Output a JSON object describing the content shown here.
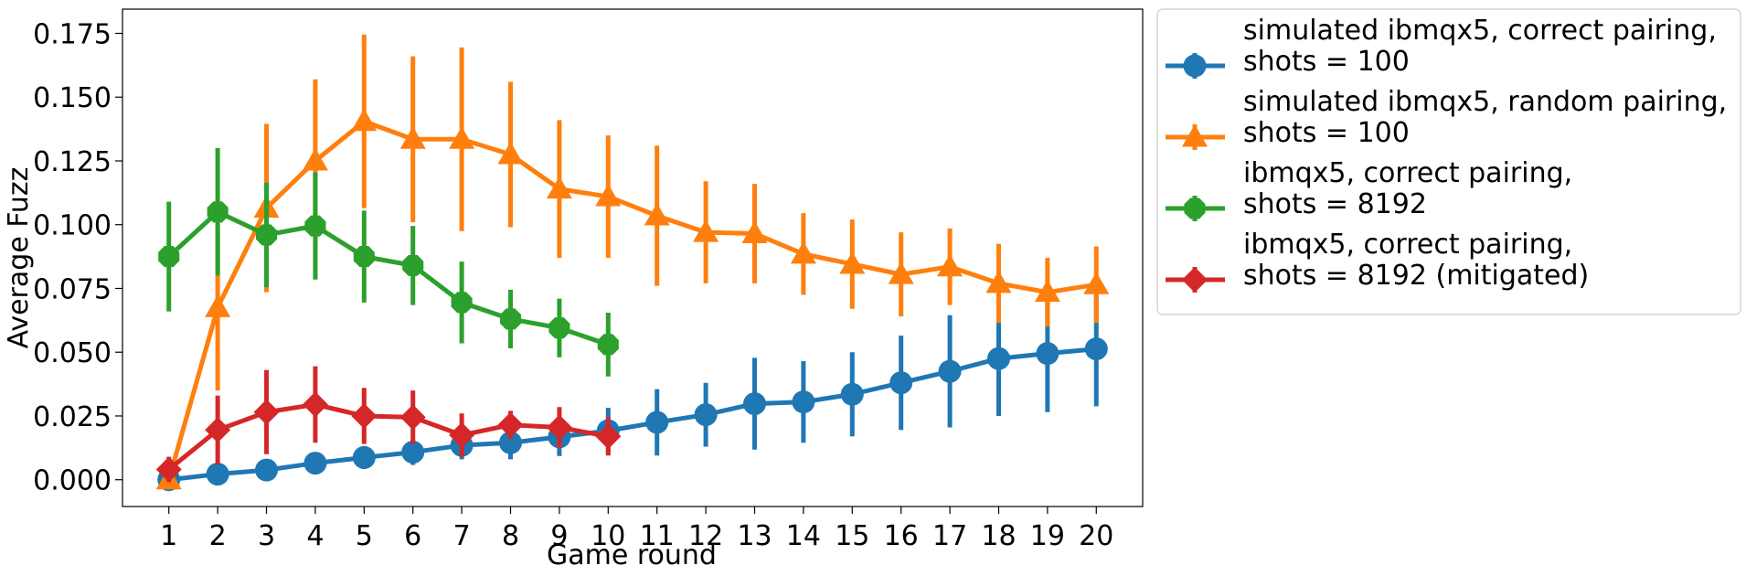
{
  "chart_data": {
    "type": "line",
    "title": "",
    "xlabel": "Game round",
    "ylabel": "Average Fuzz",
    "xlim": [
      0.05,
      20.95
    ],
    "ylim": [
      -0.0105,
      0.1845
    ],
    "x_ticks": [
      1,
      2,
      3,
      4,
      5,
      6,
      7,
      8,
      9,
      10,
      11,
      12,
      13,
      14,
      15,
      16,
      17,
      18,
      19,
      20
    ],
    "y_ticks": [
      0.0,
      0.025,
      0.05,
      0.075,
      0.1,
      0.125,
      0.15,
      0.175
    ],
    "y_tick_labels": [
      "0.000",
      "0.025",
      "0.050",
      "0.075",
      "0.100",
      "0.125",
      "0.150",
      "0.175"
    ],
    "grid": false,
    "legend_position": "outside-right-top",
    "series": [
      {
        "name_lines": [
          "simulated ibmqx5, correct pairing,",
          "shots = 100"
        ],
        "color": "#1f77b4",
        "marker": "circle",
        "x": [
          1,
          2,
          3,
          4,
          5,
          6,
          7,
          8,
          9,
          10,
          11,
          12,
          13,
          14,
          15,
          16,
          17,
          18,
          19,
          20
        ],
        "y": [
          0.0,
          0.0022,
          0.0038,
          0.0065,
          0.0087,
          0.0108,
          0.0135,
          0.0145,
          0.0168,
          0.0192,
          0.0225,
          0.0255,
          0.0298,
          0.0305,
          0.0335,
          0.038,
          0.0425,
          0.0475,
          0.0495,
          0.0513
        ],
        "err": [
          0.001,
          0.0015,
          0.002,
          0.003,
          0.0045,
          0.005,
          0.0055,
          0.0065,
          0.0075,
          0.009,
          0.013,
          0.0125,
          0.018,
          0.016,
          0.0165,
          0.0185,
          0.022,
          0.0225,
          0.023,
          0.0225
        ]
      },
      {
        "name_lines": [
          "simulated ibmqx5, random pairing,",
          "shots = 100"
        ],
        "color": "#ff7f0e",
        "marker": "triangle",
        "x": [
          1,
          2,
          3,
          4,
          5,
          6,
          7,
          8,
          9,
          10,
          11,
          12,
          13,
          14,
          15,
          16,
          17,
          18,
          19,
          20
        ],
        "y": [
          0.0,
          0.0675,
          0.1065,
          0.125,
          0.1405,
          0.1335,
          0.1335,
          0.1275,
          0.114,
          0.111,
          0.1035,
          0.097,
          0.0965,
          0.0885,
          0.0845,
          0.0805,
          0.0835,
          0.077,
          0.0735,
          0.0765
        ],
        "err": [
          0.0015,
          0.0325,
          0.033,
          0.032,
          0.034,
          0.0325,
          0.036,
          0.0285,
          0.027,
          0.024,
          0.0275,
          0.02,
          0.0195,
          0.016,
          0.0175,
          0.0165,
          0.015,
          0.0155,
          0.0135,
          0.015
        ]
      },
      {
        "name_lines": [
          "ibmqx5, correct pairing,",
          "shots = 8192"
        ],
        "color": "#2ca02c",
        "marker": "octagon",
        "x": [
          1,
          2,
          3,
          4,
          5,
          6,
          7,
          8,
          9,
          10
        ],
        "y": [
          0.0875,
          0.105,
          0.096,
          0.0995,
          0.0875,
          0.084,
          0.0695,
          0.063,
          0.0595,
          0.053
        ],
        "err": [
          0.0215,
          0.025,
          0.0205,
          0.021,
          0.018,
          0.0155,
          0.016,
          0.0115,
          0.0115,
          0.0125
        ]
      },
      {
        "name_lines": [
          "ibmqx5, correct pairing,",
          "shots = 8192 (mitigated)"
        ],
        "color": "#d62728",
        "marker": "diamond",
        "x": [
          1,
          2,
          3,
          4,
          5,
          6,
          7,
          8,
          9,
          10
        ],
        "y": [
          0.004,
          0.0195,
          0.0265,
          0.0295,
          0.025,
          0.0245,
          0.0175,
          0.0215,
          0.0205,
          0.017
        ],
        "err": [
          0.005,
          0.0135,
          0.0165,
          0.015,
          0.011,
          0.0105,
          0.0085,
          0.0055,
          0.008,
          0.0075
        ]
      }
    ]
  }
}
